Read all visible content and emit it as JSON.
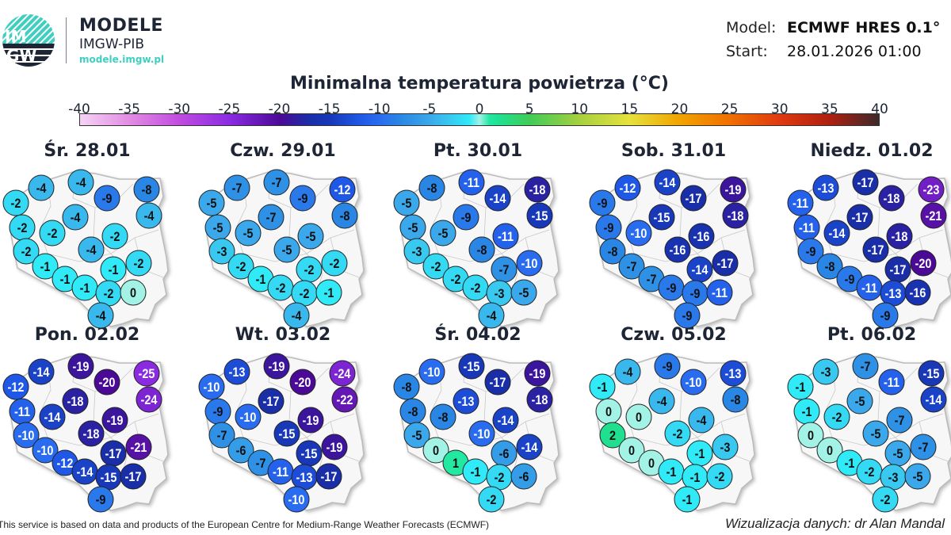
{
  "header": {
    "logo_text": "IMGW",
    "brand_title": "MODELE",
    "brand_subtitle": "IMGW-PIB",
    "brand_url": "modele.imgw.pl",
    "model_label": "Model:",
    "model_value": "ECMWF HRES 0.1°",
    "start_label": "Start:",
    "start_value": "28.01.2026 01:00"
  },
  "title": "Minimalna temperatura powietrza (°C)",
  "colorbar": {
    "ticks": [
      "-40",
      "-35",
      "-30",
      "-25",
      "-20",
      "-15",
      "-10",
      "-5",
      "0",
      "5",
      "10",
      "15",
      "20",
      "25",
      "30",
      "35",
      "40"
    ],
    "range": [
      -40,
      40
    ],
    "stops": [
      [
        -40,
        "#f4d4f4"
      ],
      [
        -35,
        "#e38be3"
      ],
      [
        -30,
        "#c04be0"
      ],
      [
        -25,
        "#8a2be2"
      ],
      [
        -20,
        "#4b0a96"
      ],
      [
        -17,
        "#1a2ea8"
      ],
      [
        -15,
        "#1838b8"
      ],
      [
        -12,
        "#1f58e6"
      ],
      [
        -10,
        "#2a6cf0"
      ],
      [
        -8,
        "#2a86e4"
      ],
      [
        -5,
        "#3aa8ea"
      ],
      [
        -3,
        "#38c8f0"
      ],
      [
        -1,
        "#30eaf8"
      ],
      [
        0,
        "#a2f2e6"
      ],
      [
        1,
        "#22e8a2"
      ],
      [
        2,
        "#20e090"
      ],
      [
        5,
        "#40cc58"
      ],
      [
        10,
        "#a6d040"
      ],
      [
        15,
        "#e6e23c"
      ],
      [
        20,
        "#f2a400"
      ],
      [
        25,
        "#f07000"
      ],
      [
        30,
        "#e03a10"
      ],
      [
        35,
        "#b02010"
      ],
      [
        40,
        "#3c2a2a"
      ]
    ]
  },
  "maps": [
    {
      "date": "Śr. 28.01",
      "values": [
        -4,
        -4,
        -9,
        -8,
        -2,
        -4,
        -4,
        -2,
        -2,
        -2,
        -2,
        -4,
        -1,
        -1,
        -2,
        -1,
        -1,
        -2,
        0,
        -4
      ]
    },
    {
      "date": "Czw. 29.01",
      "values": [
        -7,
        -7,
        -9,
        -12,
        -5,
        -7,
        -8,
        -5,
        -5,
        -5,
        -3,
        -5,
        -2,
        -2,
        -2,
        -1,
        -2,
        -2,
        -1,
        -4
      ]
    },
    {
      "date": "Pt. 30.01",
      "values": [
        -8,
        -11,
        -14,
        -18,
        -5,
        -9,
        -15,
        -5,
        -5,
        -11,
        -3,
        -8,
        -2,
        -7,
        -10,
        -2,
        -2,
        -3,
        -5,
        -4
      ]
    },
    {
      "date": "Sob. 31.01",
      "values": [
        -12,
        -14,
        -17,
        -19,
        -9,
        -15,
        -18,
        -9,
        -10,
        -16,
        -8,
        -16,
        -7,
        -14,
        -17,
        -7,
        -9,
        -9,
        -11,
        -9
      ]
    },
    {
      "date": "Niedz. 01.02",
      "values": [
        -13,
        -17,
        -18,
        -23,
        -11,
        -17,
        -21,
        -11,
        -14,
        -18,
        -9,
        -17,
        -8,
        -17,
        -20,
        -9,
        -11,
        -13,
        -16,
        -9
      ]
    },
    {
      "date": "Pon. 02.02",
      "values": [
        -14,
        -19,
        -20,
        -25,
        -12,
        -18,
        -24,
        -11,
        -14,
        -19,
        -10,
        -18,
        -10,
        -17,
        -21,
        -12,
        -14,
        -15,
        -17,
        -9
      ]
    },
    {
      "date": "Wt. 03.02",
      "values": [
        -13,
        -19,
        -20,
        -24,
        -10,
        -17,
        -22,
        -9,
        -10,
        -19,
        -7,
        -15,
        -6,
        -15,
        -19,
        -7,
        -11,
        -13,
        -17,
        -10
      ]
    },
    {
      "date": "Śr. 04.02",
      "values": [
        -10,
        -15,
        -17,
        -19,
        -8,
        -13,
        -18,
        -8,
        -8,
        -14,
        -5,
        -10,
        0,
        -6,
        -14,
        1,
        -1,
        -2,
        -6,
        -2
      ]
    },
    {
      "date": "Czw. 05.02",
      "values": [
        -4,
        -9,
        -10,
        -13,
        -1,
        -4,
        -8,
        0,
        0,
        -4,
        2,
        -2,
        0,
        -1,
        -3,
        0,
        -1,
        -1,
        -2,
        -1
      ]
    },
    {
      "date": "Pt. 06.02",
      "values": [
        -3,
        -7,
        -11,
        -15,
        -1,
        -5,
        -14,
        -1,
        -2,
        -7,
        0,
        -5,
        0,
        -5,
        -7,
        -1,
        -2,
        -3,
        -5,
        -2
      ]
    }
  ],
  "footer": {
    "attribution": "This service is based on data and products of the European Centre for Medium-Range Weather Forecasts (ECMWF)",
    "credit": "Wizualizacja danych: dr Alan Mandal"
  }
}
